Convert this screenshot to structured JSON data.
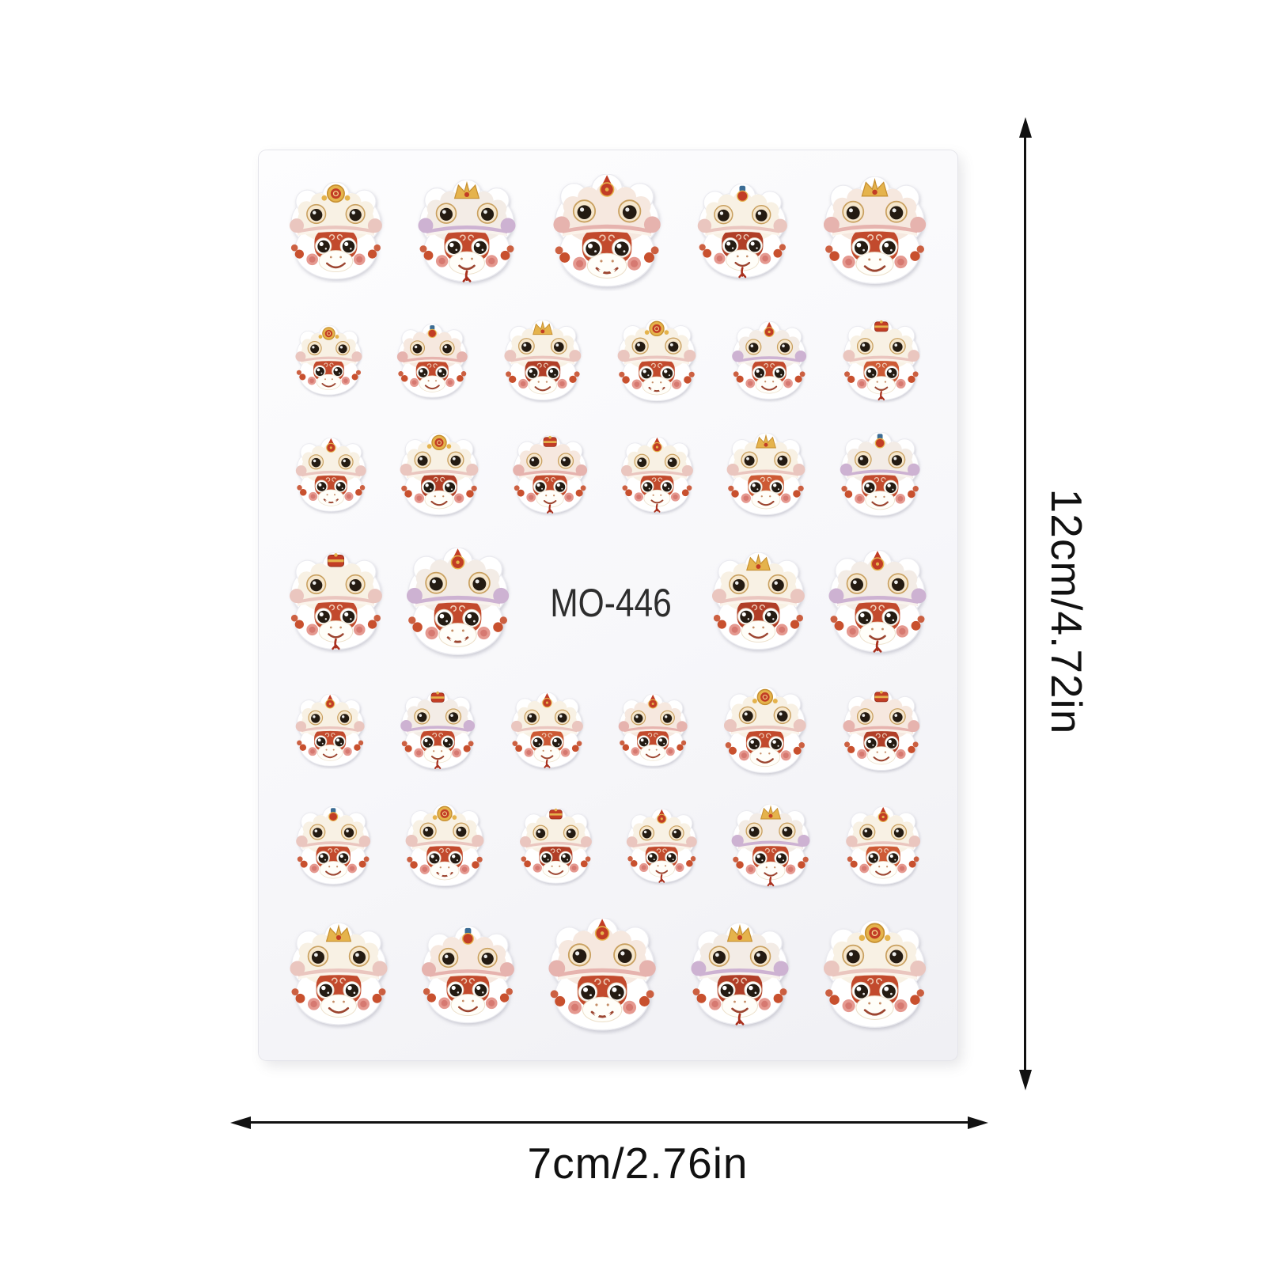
{
  "product": {
    "code": "MO-446",
    "motif": "cartoon snake face wearing lion dance headdress",
    "sticker_count": 38
  },
  "annotations": {
    "vertical_label": "12cm/4.72in",
    "horizontal_label": "7cm/2.76in"
  },
  "colors": {
    "page_background": "#ffffff",
    "sheet_fill": "#fafafc",
    "sheet_edge": "#e4e4ea",
    "annotation_ink": "#111111",
    "code_ink": "#2d2d2d",
    "sticker_cut_edge": "#ebebf0",
    "hat_eye_ring": "#c9a05f",
    "hat_eye_fill": "#f6e7cd",
    "eye_dark": "#241b12",
    "muzzle": "#fffef9",
    "muzzle_edge": "#ecdfc9",
    "cheek": "#df7f74",
    "cheek_deep": "#c75a52",
    "tassel": "#c8502e",
    "gold": "#e5b34c",
    "gold_deep": "#c68f2f",
    "gold_light": "#f5d98e",
    "crown_red": "#c23d25",
    "crown_red_deep": "#8f2a1a",
    "blue_knob": "#3c6c94",
    "mouth_line": "#9c4530",
    "tongue": "#a9301e",
    "nostril": "#c58d66",
    "fluff_light": "#fdf8ef",
    "fang": "#fffef7",
    "hat_tints": {
      "cream": {
        "hat": "#f8f1e4",
        "band": "#eac6bf"
      },
      "pink": {
        "hat": "#f6e8df",
        "band": "#e6b3ae"
      },
      "lavender": {
        "hat": "#f3ece6",
        "band": "#cdb2d2"
      }
    },
    "face_tints": {
      "base": "#c24a2d",
      "dark": "#b03e27",
      "bright": "#cd5a35"
    }
  },
  "sheet": {
    "rows": [
      {
        "size": "lg",
        "items": [
          {
            "type": "sticker",
            "crown": "fu-medallion",
            "hat": "cream",
            "face": "base",
            "mouth": "smile",
            "scale": 0.95
          },
          {
            "type": "sticker",
            "crown": "gold-crown",
            "hat": "lavender",
            "face": "base",
            "mouth": "tongue",
            "scale": 1.0
          },
          {
            "type": "sticker",
            "crown": "red-star",
            "hat": "pink",
            "face": "base",
            "mouth": "fangs",
            "scale": 1.1
          },
          {
            "type": "sticker",
            "crown": "blue-knob",
            "hat": "cream",
            "face": "dark",
            "mouth": "tongue",
            "scale": 0.92
          },
          {
            "type": "sticker",
            "crown": "gold-crown",
            "hat": "pink",
            "face": "base",
            "mouth": "smile",
            "scale": 1.05
          }
        ]
      },
      {
        "size": "sm",
        "items": [
          {
            "type": "sticker",
            "crown": "fu-medallion",
            "hat": "cream",
            "face": "base",
            "mouth": "smile",
            "scale": 0.85
          },
          {
            "type": "sticker",
            "crown": "blue-knob",
            "hat": "pink",
            "face": "base",
            "mouth": "smile",
            "scale": 0.9
          },
          {
            "type": "sticker",
            "crown": "gold-crown",
            "hat": "cream",
            "face": "dark",
            "mouth": "smile",
            "scale": 0.98
          },
          {
            "type": "sticker",
            "crown": "fu-medallion",
            "hat": "cream",
            "face": "base",
            "mouth": "fangs",
            "scale": 1.0
          },
          {
            "type": "sticker",
            "crown": "red-star",
            "hat": "lavender",
            "face": "base",
            "mouth": "smile",
            "scale": 0.95
          },
          {
            "type": "sticker",
            "crown": "red-crown",
            "hat": "cream",
            "face": "bright",
            "mouth": "tongue",
            "scale": 0.98
          }
        ]
      },
      {
        "size": "sm",
        "items": [
          {
            "type": "sticker",
            "crown": "red-star",
            "hat": "cream",
            "face": "base",
            "mouth": "fangs",
            "scale": 0.9
          },
          {
            "type": "sticker",
            "crown": "fu-medallion",
            "hat": "cream",
            "face": "dark",
            "mouth": "smile",
            "scale": 1.0
          },
          {
            "type": "sticker",
            "crown": "red-crown",
            "hat": "pink",
            "face": "base",
            "mouth": "tongue",
            "scale": 0.95
          },
          {
            "type": "sticker",
            "crown": "red-star",
            "hat": "cream",
            "face": "base",
            "mouth": "tongue",
            "scale": 0.92
          },
          {
            "type": "sticker",
            "crown": "gold-crown",
            "hat": "cream",
            "face": "bright",
            "mouth": "smile",
            "scale": 1.0
          },
          {
            "type": "sticker",
            "crown": "blue-knob",
            "hat": "lavender",
            "face": "base",
            "mouth": "smile",
            "scale": 1.02
          }
        ]
      },
      {
        "size": "lg",
        "items": [
          {
            "type": "sticker",
            "crown": "red-crown",
            "hat": "cream",
            "face": "base",
            "mouth": "tongue",
            "scale": 0.95
          },
          {
            "type": "sticker",
            "crown": "red-star",
            "hat": "lavender",
            "face": "base",
            "mouth": "fangs",
            "scale": 1.05
          },
          {
            "type": "code-label"
          },
          {
            "type": "sticker",
            "crown": "gold-crown",
            "hat": "cream",
            "face": "dark",
            "mouth": "smile",
            "scale": 0.95
          },
          {
            "type": "sticker",
            "crown": "red-star",
            "hat": "lavender",
            "face": "base",
            "mouth": "tongue",
            "scale": 1.0
          }
        ]
      },
      {
        "size": "sm",
        "items": [
          {
            "type": "sticker",
            "crown": "red-star",
            "hat": "cream",
            "face": "base",
            "mouth": "smile",
            "scale": 0.88
          },
          {
            "type": "sticker",
            "crown": "red-crown",
            "hat": "lavender",
            "face": "base",
            "mouth": "tongue",
            "scale": 0.95
          },
          {
            "type": "sticker",
            "crown": "red-star",
            "hat": "cream",
            "face": "bright",
            "mouth": "tongue",
            "scale": 0.92
          },
          {
            "type": "sticker",
            "crown": "red-star",
            "hat": "pink",
            "face": "base",
            "mouth": "smile",
            "scale": 0.88
          },
          {
            "type": "sticker",
            "crown": "fu-medallion",
            "hat": "cream",
            "face": "base",
            "mouth": "smile",
            "scale": 1.05
          },
          {
            "type": "sticker",
            "crown": "red-crown",
            "hat": "pink",
            "face": "dark",
            "mouth": "smile",
            "scale": 0.98
          }
        ]
      },
      {
        "size": "sm",
        "items": [
          {
            "type": "sticker",
            "crown": "blue-knob",
            "hat": "cream",
            "face": "base",
            "mouth": "smile",
            "scale": 0.95
          },
          {
            "type": "sticker",
            "crown": "fu-medallion",
            "hat": "cream",
            "face": "base",
            "mouth": "fangs",
            "scale": 1.0
          },
          {
            "type": "sticker",
            "crown": "red-crown",
            "hat": "cream",
            "face": "dark",
            "mouth": "smile",
            "scale": 0.92
          },
          {
            "type": "sticker",
            "crown": "red-star",
            "hat": "cream",
            "face": "base",
            "mouth": "tongue",
            "scale": 0.9
          },
          {
            "type": "sticker",
            "crown": "gold-crown",
            "hat": "lavender",
            "face": "base",
            "mouth": "tongue",
            "scale": 1.0
          },
          {
            "type": "sticker",
            "crown": "red-star",
            "hat": "cream",
            "face": "bright",
            "mouth": "smile",
            "scale": 0.95
          }
        ]
      },
      {
        "size": "lg",
        "items": [
          {
            "type": "sticker",
            "crown": "gold-crown",
            "hat": "cream",
            "face": "base",
            "mouth": "smile",
            "scale": 1.0
          },
          {
            "type": "sticker",
            "crown": "blue-knob",
            "hat": "pink",
            "face": "base",
            "mouth": "smile",
            "scale": 0.95
          },
          {
            "type": "sticker",
            "crown": "red-star",
            "hat": "pink",
            "face": "base",
            "mouth": "fangs",
            "scale": 1.1
          },
          {
            "type": "sticker",
            "crown": "gold-crown",
            "hat": "lavender",
            "face": "dark",
            "mouth": "tongue",
            "scale": 1.0
          },
          {
            "type": "sticker",
            "crown": "fu-medallion",
            "hat": "cream",
            "face": "base",
            "mouth": "smile",
            "scale": 1.05
          }
        ]
      }
    ]
  }
}
